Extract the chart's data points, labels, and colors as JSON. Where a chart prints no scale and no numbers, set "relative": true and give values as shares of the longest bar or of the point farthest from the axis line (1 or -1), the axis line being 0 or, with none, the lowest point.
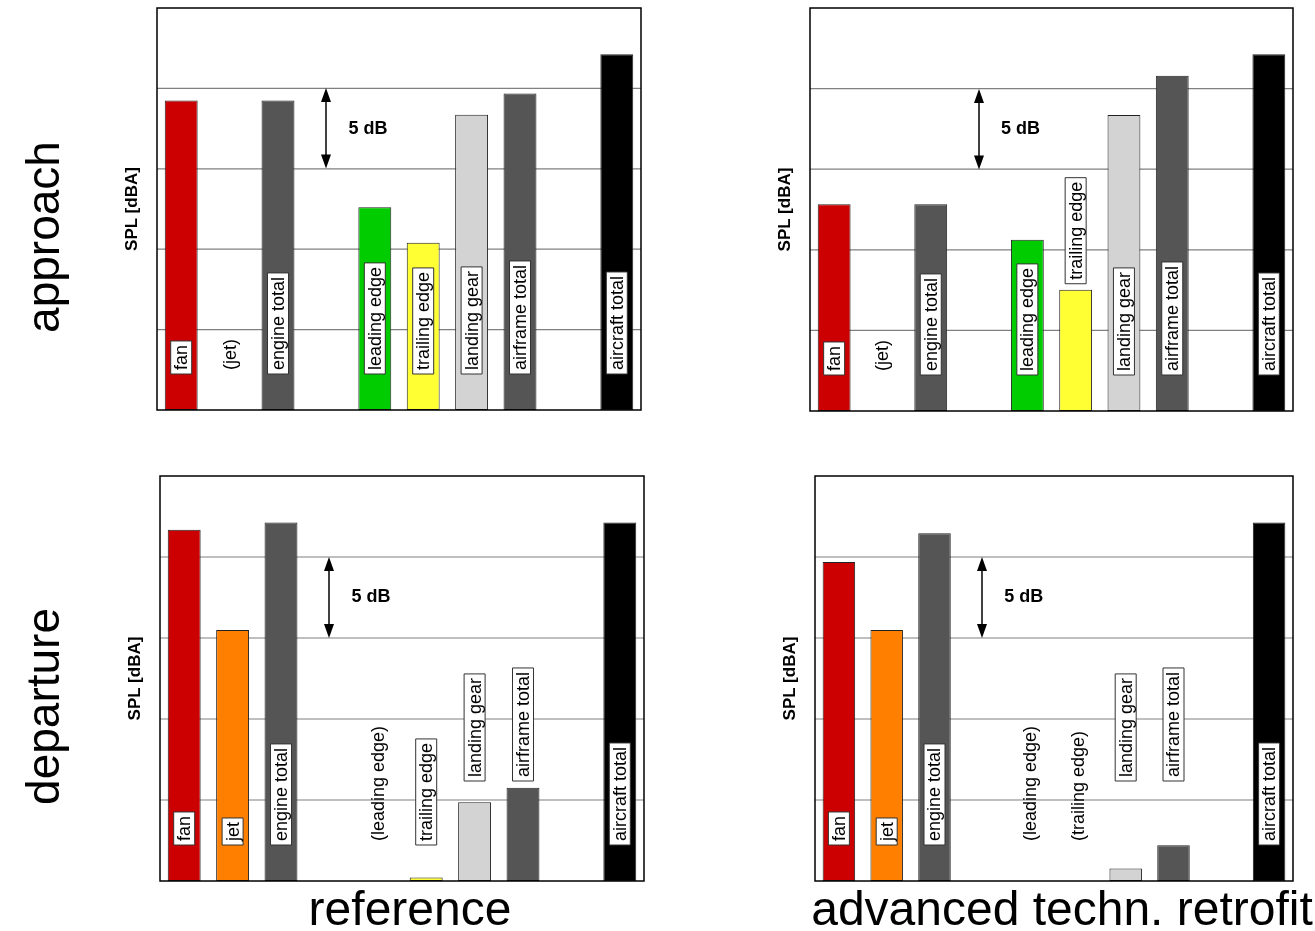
{
  "chart_data": [
    {
      "type": "bar",
      "title": "approach",
      "ylabel": "SPL [dBA]",
      "relative": true,
      "grid": "y",
      "tick_labels": "x",
      "annotations": [
        "5 dB"
      ],
      "categories": [
        "fan",
        "(jet)",
        "engine total",
        null,
        "leading edge",
        "trailing edge",
        "landing gear",
        "airframe total",
        null,
        "aircraft total"
      ],
      "values": [
        0.87,
        null,
        0.87,
        null,
        0.57,
        0.47,
        0.83,
        0.89,
        null,
        1
      ],
      "colors": [
        "#cc0000",
        null,
        "#555555",
        null,
        "#00cc00",
        "#ffff33",
        "#d3d3d3",
        "#555555",
        null,
        "#000000"
      ]
    },
    {
      "type": "bar",
      "ylabel": "SPL [dBA]",
      "relative": true,
      "grid": "y",
      "tick_labels": "x",
      "annotations": [
        "5 dB"
      ],
      "categories": [
        "fan",
        "(jet)",
        "engine total",
        null,
        "leading edge",
        "trailing edge",
        "landing gear",
        "airframe total",
        null,
        "aircraft total"
      ],
      "values": [
        0.58,
        null,
        0.58,
        null,
        0.48,
        0.34,
        0.83,
        0.94,
        null,
        1
      ],
      "colors": [
        "#cc0000",
        null,
        "#555555",
        null,
        "#00cc00",
        "#ffff33",
        "#d3d3d3",
        "#555555",
        null,
        "#000000"
      ]
    },
    {
      "type": "bar",
      "title": "departure",
      "xlabel": "reference",
      "ylabel": "SPL [dBA]",
      "relative": true,
      "grid": "y",
      "tick_labels": "x",
      "annotations": [
        "5 dB"
      ],
      "categories": [
        "fan",
        "jet",
        "engine total",
        null,
        "(leading edge)",
        "trailing edge",
        "landing gear",
        "airframe total",
        null,
        "aircraft total"
      ],
      "values": [
        0.98,
        0.7,
        1,
        null,
        null,
        0.01,
        0.22,
        0.26,
        null,
        1
      ],
      "colors": [
        "#cc0000",
        "#ff8000",
        "#555555",
        null,
        null,
        "#ffff33",
        "#d3d3d3",
        "#555555",
        null,
        "#000000"
      ]
    },
    {
      "type": "bar",
      "xlabel": "advanced techn. retrofit",
      "ylabel": "SPL [dBA]",
      "relative": true,
      "grid": "y",
      "tick_labels": "x",
      "annotations": [
        "5 dB"
      ],
      "categories": [
        "fan",
        "jet",
        "engine total",
        null,
        "(leading edge)",
        "(trailing edge)",
        "landing gear",
        "airframe total",
        null,
        "aircraft total"
      ],
      "values": [
        0.89,
        0.7,
        0.97,
        null,
        null,
        null,
        0.035,
        0.1,
        null,
        1
      ],
      "colors": [
        "#cc0000",
        "#ff8000",
        "#555555",
        null,
        null,
        null,
        "#d3d3d3",
        "#555555",
        null,
        "#000000"
      ]
    }
  ]
}
